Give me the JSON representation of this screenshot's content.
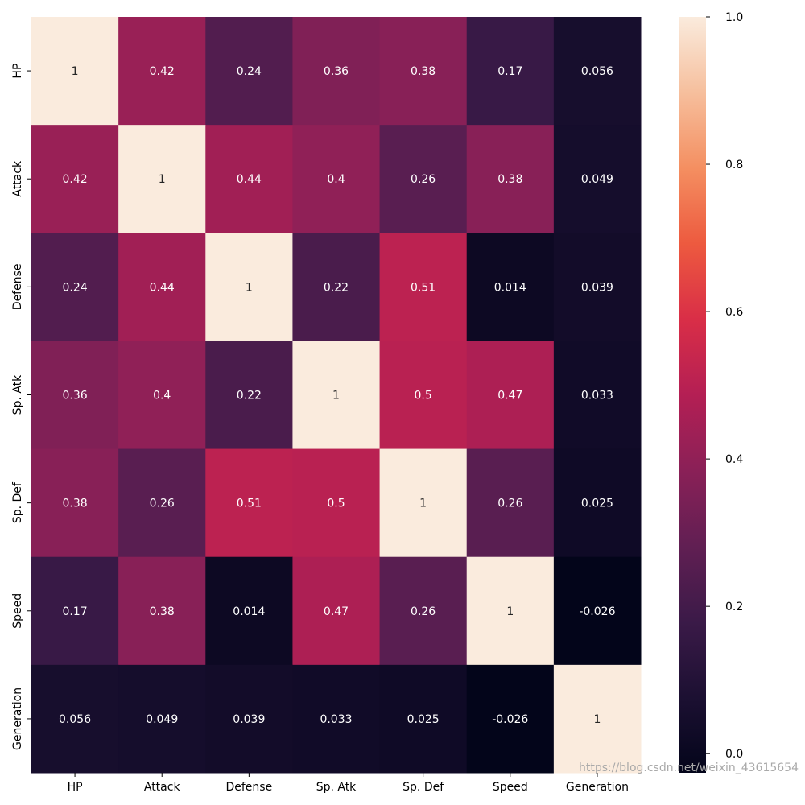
{
  "chart_data": {
    "type": "heatmap",
    "title": "",
    "xlabel": "",
    "ylabel": "",
    "categories": [
      "HP",
      "Attack",
      "Defense",
      "Sp. Atk",
      "Sp. Def",
      "Speed",
      "Generation"
    ],
    "matrix": [
      [
        1,
        0.42,
        0.24,
        0.36,
        0.38,
        0.17,
        0.056
      ],
      [
        0.42,
        1,
        0.44,
        0.4,
        0.26,
        0.38,
        0.049
      ],
      [
        0.24,
        0.44,
        1,
        0.22,
        0.51,
        0.014,
        0.039
      ],
      [
        0.36,
        0.4,
        0.22,
        1,
        0.5,
        0.47,
        0.033
      ],
      [
        0.38,
        0.26,
        0.51,
        0.5,
        1,
        0.26,
        0.025
      ],
      [
        0.17,
        0.38,
        0.014,
        0.47,
        0.26,
        1,
        -0.026
      ],
      [
        0.056,
        0.049,
        0.039,
        0.033,
        0.025,
        -0.026,
        1
      ]
    ],
    "colorscale_range": [
      -0.026,
      1.0
    ],
    "colorbar_ticks": [
      "0.0",
      "0.2",
      "0.4",
      "0.6",
      "0.8",
      "1.0"
    ],
    "colormap": "rocket",
    "grid": false
  },
  "watermark": "https://blog.csdn.net/weixin_43615654"
}
